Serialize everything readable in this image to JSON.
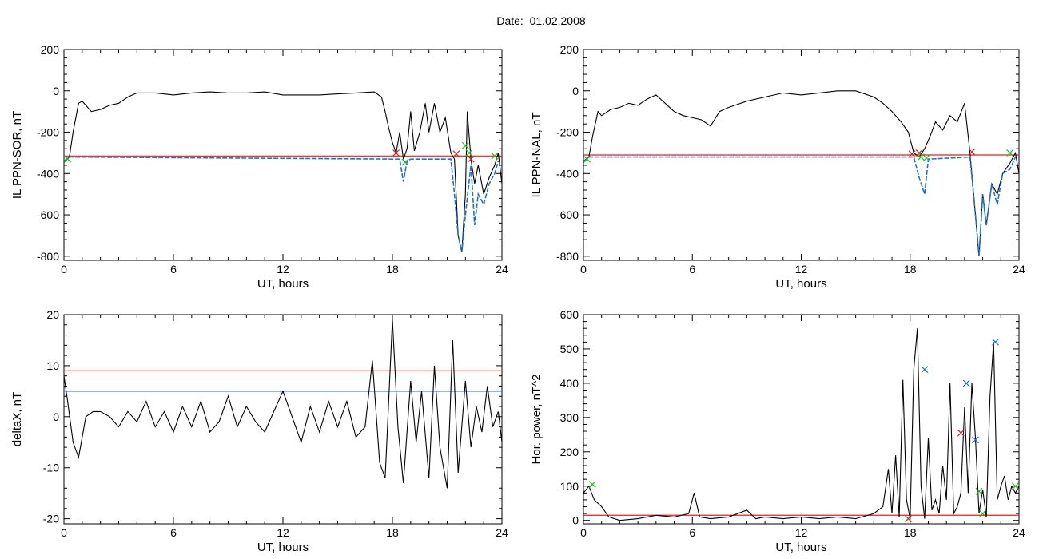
{
  "title": "Date:  01.02.2008",
  "colors": {
    "trace": "#000000",
    "threshold_red": "#dd2222",
    "threshold_blue": "#1f6fd6",
    "marker_green": "#22bb22"
  },
  "chart_data": [
    {
      "type": "line",
      "xlabel": "UT, hours",
      "ylabel": "IL PPN-SOR, nT",
      "xlim": [
        0,
        24
      ],
      "ylim": [
        -820,
        200
      ],
      "xticks": [
        0,
        6,
        12,
        18,
        24
      ],
      "yticks": [
        -800,
        -600,
        -400,
        -200,
        0,
        200
      ],
      "grid": false,
      "threshold": -315,
      "series": [
        {
          "role": "index",
          "color": "#000000",
          "x": [
            0,
            0.3,
            0.5,
            0.8,
            1.0,
            1.5,
            2.0,
            2.5,
            3.0,
            3.5,
            4.0,
            5.0,
            6.0,
            7.0,
            8.0,
            9.0,
            10.0,
            11.0,
            12.0,
            13.0,
            14.0,
            15.0,
            16.0,
            17.0,
            17.4,
            17.6,
            17.8,
            18.0,
            18.2,
            18.4,
            18.6,
            18.8,
            19.0,
            19.2,
            19.5,
            19.8,
            20.0,
            20.3,
            20.6,
            20.9,
            21.2,
            21.4,
            21.6,
            21.8,
            22.0,
            22.1,
            22.3,
            22.5,
            22.7,
            23.0,
            23.3,
            23.6,
            23.8,
            24.0
          ],
          "y": [
            -340,
            -320,
            -200,
            -60,
            -50,
            -100,
            -90,
            -70,
            -60,
            -30,
            -10,
            -10,
            -20,
            -10,
            -5,
            -10,
            -10,
            -5,
            -20,
            -20,
            -20,
            -15,
            -10,
            -5,
            -30,
            -100,
            -180,
            -250,
            -300,
            -200,
            -330,
            -280,
            -100,
            -290,
            -200,
            -60,
            -200,
            -60,
            -200,
            -130,
            -300,
            -330,
            -700,
            -780,
            -500,
            -100,
            -330,
            -450,
            -360,
            -500,
            -420,
            -360,
            -300,
            -450
          ]
        },
        {
          "role": "below-threshold",
          "color": "#1f6fd6",
          "x": [
            0,
            0.3,
            18.4,
            18.6,
            18.8,
            19.0,
            21.2,
            21.4,
            21.6,
            21.8,
            22.0,
            22.3,
            22.5,
            22.7,
            23.0,
            23.3,
            23.6,
            23.8
          ],
          "y": [
            -340,
            -320,
            -330,
            -440,
            -340,
            -330,
            -330,
            -500,
            -700,
            -780,
            -600,
            -360,
            -650,
            -500,
            -550,
            -450,
            -400,
            -340
          ]
        }
      ],
      "markers": [
        {
          "x": 0.2,
          "y": -330,
          "color": "#22bb22"
        },
        {
          "x": 18.2,
          "y": -300,
          "color": "#dd2222"
        },
        {
          "x": 18.7,
          "y": -345,
          "color": "#22bb22"
        },
        {
          "x": 21.5,
          "y": -305,
          "color": "#dd2222"
        },
        {
          "x": 22.0,
          "y": -265,
          "color": "#22bb22"
        },
        {
          "x": 22.2,
          "y": -300,
          "color": "#22bb22"
        },
        {
          "x": 22.3,
          "y": -330,
          "color": "#dd2222"
        },
        {
          "x": 23.6,
          "y": -315,
          "color": "#22bb22"
        }
      ]
    },
    {
      "type": "line",
      "xlabel": "UT, hours",
      "ylabel": "IL PPN-NAL, nT",
      "xlim": [
        0,
        24
      ],
      "ylim": [
        -820,
        200
      ],
      "xticks": [
        0,
        6,
        12,
        18,
        24
      ],
      "yticks": [
        -800,
        -600,
        -400,
        -200,
        0,
        200
      ],
      "grid": false,
      "threshold": -310,
      "series": [
        {
          "role": "index",
          "color": "#000000",
          "x": [
            0,
            0.3,
            0.5,
            0.8,
            1.0,
            1.5,
            2.0,
            2.5,
            3.0,
            3.5,
            4.0,
            4.5,
            5.0,
            5.5,
            6.0,
            6.5,
            7.0,
            7.5,
            8.0,
            9.0,
            10.0,
            11.0,
            12.0,
            13.0,
            14.0,
            15.0,
            16.0,
            16.5,
            17.0,
            17.5,
            17.9,
            18.2,
            18.5,
            18.8,
            19.1,
            19.4,
            19.8,
            20.2,
            20.6,
            21.0,
            21.3,
            21.6,
            21.8,
            22.0,
            22.2,
            22.5,
            22.8,
            23.1,
            23.5,
            23.8,
            24.0
          ],
          "y": [
            -340,
            -320,
            -220,
            -100,
            -120,
            -90,
            -80,
            -60,
            -70,
            -40,
            -20,
            -60,
            -100,
            -120,
            -130,
            -140,
            -170,
            -100,
            -80,
            -50,
            -30,
            -10,
            -20,
            -10,
            0,
            0,
            -30,
            -60,
            -100,
            -150,
            -200,
            -300,
            -320,
            -280,
            -220,
            -150,
            -190,
            -120,
            -150,
            -60,
            -300,
            -600,
            -800,
            -500,
            -650,
            -450,
            -500,
            -400,
            -350,
            -300,
            -400
          ]
        },
        {
          "role": "below-threshold",
          "color": "#1f6fd6",
          "x": [
            0,
            0.3,
            18.2,
            18.5,
            18.8,
            19.0,
            21.3,
            21.6,
            21.8,
            22.0,
            22.2,
            22.5,
            22.8,
            23.1,
            23.5,
            23.8
          ],
          "y": [
            -340,
            -320,
            -320,
            -420,
            -500,
            -330,
            -320,
            -600,
            -800,
            -500,
            -650,
            -450,
            -550,
            -400,
            -380,
            -320
          ]
        }
      ],
      "markers": [
        {
          "x": 0.2,
          "y": -330,
          "color": "#22bb22"
        },
        {
          "x": 18.1,
          "y": -305,
          "color": "#dd2222"
        },
        {
          "x": 18.5,
          "y": -300,
          "color": "#dd2222"
        },
        {
          "x": 18.6,
          "y": -320,
          "color": "#22bb22"
        },
        {
          "x": 18.9,
          "y": -325,
          "color": "#22bb22"
        },
        {
          "x": 21.4,
          "y": -295,
          "color": "#dd2222"
        },
        {
          "x": 23.5,
          "y": -300,
          "color": "#22bb22"
        }
      ]
    },
    {
      "type": "line",
      "xlabel": "UT, hours",
      "ylabel": "deltaX, nT",
      "xlim": [
        0,
        24
      ],
      "ylim": [
        -21,
        20
      ],
      "xticks": [
        0,
        6,
        12,
        18,
        24
      ],
      "yticks": [
        -20,
        -10,
        0,
        10,
        20
      ],
      "grid": false,
      "thresholds": [
        {
          "value": 9,
          "color": "#dd2222"
        },
        {
          "value": 5,
          "color": "#1f6fd6"
        }
      ],
      "series": [
        {
          "role": "deltaX",
          "color": "#000000",
          "x": [
            0,
            0.2,
            0.5,
            0.8,
            1.2,
            1.6,
            2.0,
            2.5,
            3.0,
            3.5,
            4.0,
            4.5,
            5.0,
            5.5,
            6.0,
            6.5,
            7.0,
            7.5,
            8.0,
            8.5,
            9.0,
            9.5,
            10.0,
            10.5,
            11.0,
            11.5,
            12.0,
            12.5,
            13.0,
            13.5,
            14.0,
            14.5,
            15.0,
            15.5,
            16.0,
            16.5,
            16.9,
            17.3,
            17.6,
            18.0,
            18.3,
            18.6,
            19.0,
            19.3,
            19.6,
            20.0,
            20.3,
            20.6,
            21.0,
            21.3,
            21.6,
            22.0,
            22.3,
            22.6,
            22.9,
            23.2,
            23.5,
            23.8,
            24.0
          ],
          "y": [
            8,
            3,
            -5,
            -8,
            0,
            1,
            1,
            0,
            -2,
            1,
            -1,
            3,
            -2,
            1,
            -3,
            2,
            -2,
            3,
            -3,
            -1,
            4,
            -2,
            2,
            -1,
            -3,
            1,
            5,
            0,
            -5,
            2,
            -3,
            3,
            -2,
            3,
            -4,
            -2,
            11,
            -9,
            -12,
            19,
            -2,
            -13,
            7,
            -5,
            5,
            -12,
            10,
            -6,
            -14,
            15,
            -11,
            7,
            -6,
            2,
            -3,
            6,
            -2,
            1,
            -5
          ]
        }
      ]
    },
    {
      "type": "line",
      "xlabel": "UT, hours",
      "ylabel": "Hor. power, nT^2",
      "xlim": [
        0,
        24
      ],
      "ylim": [
        -10,
        600
      ],
      "xticks": [
        0,
        6,
        12,
        18,
        24
      ],
      "yticks": [
        0,
        100,
        200,
        300,
        400,
        500,
        600
      ],
      "grid": false,
      "threshold": 15,
      "series": [
        {
          "role": "power",
          "color": "#000000",
          "x": [
            0,
            0.3,
            0.6,
            1.0,
            1.4,
            2.0,
            3.0,
            4.0,
            5.0,
            5.8,
            6.1,
            6.4,
            7.0,
            8.0,
            9.0,
            9.5,
            10.0,
            11.0,
            12.0,
            13.0,
            14.0,
            15.0,
            16.0,
            16.5,
            16.8,
            17.0,
            17.2,
            17.4,
            17.6,
            17.8,
            18.0,
            18.2,
            18.4,
            18.6,
            18.8,
            19.0,
            19.2,
            19.4,
            19.6,
            19.8,
            20.0,
            20.2,
            20.4,
            20.6,
            20.8,
            21.0,
            21.2,
            21.4,
            21.6,
            21.8,
            22.0,
            22.2,
            22.4,
            22.6,
            22.8,
            23.0,
            23.2,
            23.4,
            23.6,
            23.8,
            24.0
          ],
          "y": [
            80,
            100,
            60,
            40,
            10,
            0,
            5,
            15,
            10,
            20,
            80,
            10,
            5,
            10,
            30,
            5,
            10,
            5,
            10,
            5,
            10,
            5,
            20,
            40,
            150,
            20,
            190,
            10,
            410,
            60,
            5,
            440,
            560,
            100,
            5,
            240,
            30,
            60,
            20,
            160,
            60,
            400,
            20,
            40,
            80,
            330,
            80,
            400,
            240,
            20,
            90,
            10,
            360,
            520,
            60,
            100,
            130,
            60,
            100,
            80,
            100
          ]
        }
      ],
      "markers": [
        {
          "x": 0.5,
          "y": 105,
          "color": "#22bb22"
        },
        {
          "x": 17.9,
          "y": 5,
          "color": "#dd2222"
        },
        {
          "x": 18.8,
          "y": 440,
          "color": "#1f6fd6"
        },
        {
          "x": 20.8,
          "y": 255,
          "color": "#dd2222"
        },
        {
          "x": 21.1,
          "y": 400,
          "color": "#1f6fd6"
        },
        {
          "x": 21.6,
          "y": 235,
          "color": "#1f6fd6"
        },
        {
          "x": 21.8,
          "y": 85,
          "color": "#22bb22"
        },
        {
          "x": 22.0,
          "y": 20,
          "color": "#22bb22"
        },
        {
          "x": 22.7,
          "y": 520,
          "color": "#1f6fd6"
        },
        {
          "x": 23.8,
          "y": 100,
          "color": "#22bb22"
        }
      ]
    }
  ]
}
